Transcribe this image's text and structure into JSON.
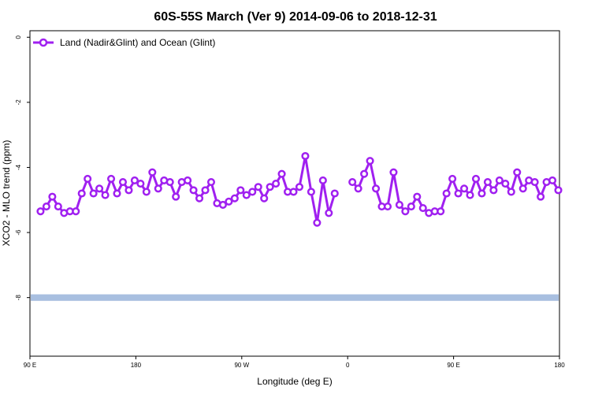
{
  "chart_data": {
    "type": "line",
    "title": "60S-55S March (Ver 9)   2014-09-06 to 2018-12-31",
    "xlabel": "Longitude (deg E)",
    "ylabel": "XCO2 - MLO trend (ppm)",
    "x_ticks": [
      {
        "value": 90,
        "label": "90 E"
      },
      {
        "value": 180,
        "label": "180"
      },
      {
        "value": 270,
        "label": "90 W"
      },
      {
        "value": 360,
        "label": "0"
      },
      {
        "value": 450,
        "label": "90 E"
      },
      {
        "value": 540,
        "label": "180"
      }
    ],
    "y_ticks": [
      {
        "value": 0,
        "label": "0"
      },
      {
        "value": -2,
        "label": "-2"
      },
      {
        "value": -4,
        "label": "-4"
      },
      {
        "value": -6,
        "label": "-6"
      },
      {
        "value": -8,
        "label": "-8"
      }
    ],
    "xlim": [
      90,
      540
    ],
    "ylim": [
      -9.8,
      0.2
    ],
    "grid": false,
    "legend": {
      "position": "top-left"
    },
    "band": {
      "y_min": -8.1,
      "y_max": -7.9,
      "color": "#a8bfe0"
    },
    "series": [
      {
        "name": "Land (Nadir&Glint) and Ocean (Glint)",
        "color": "#a020f0",
        "x": [
          99,
          104,
          109,
          114,
          119,
          124,
          129,
          134,
          139,
          144,
          149,
          154,
          159,
          164,
          169,
          174,
          179,
          184,
          189,
          194,
          199,
          204,
          209,
          214,
          219,
          224,
          229,
          234,
          239,
          244,
          249,
          254,
          259,
          264,
          269,
          274,
          279,
          284,
          289,
          294,
          299,
          304,
          309,
          314,
          319,
          324,
          329,
          334,
          339,
          344,
          349,
          364,
          369,
          374,
          379,
          384,
          389,
          394,
          399,
          404,
          409,
          414,
          419,
          424,
          429,
          434,
          439,
          444,
          449,
          454,
          459,
          464,
          469,
          474,
          479,
          484,
          489,
          494,
          499,
          504,
          509,
          514,
          519,
          524,
          529,
          534,
          539
        ],
        "y": [
          -5.35,
          -5.2,
          -4.9,
          -5.2,
          -5.4,
          -5.35,
          -5.35,
          -4.8,
          -4.35,
          -4.8,
          -4.65,
          -4.85,
          -4.35,
          -4.8,
          -4.45,
          -4.7,
          -4.4,
          -4.5,
          -4.75,
          -4.15,
          -4.65,
          -4.4,
          -4.45,
          -4.9,
          -4.45,
          -4.4,
          -4.7,
          -4.95,
          -4.7,
          -4.45,
          -5.1,
          -5.15,
          -5.05,
          -4.95,
          -4.7,
          -4.85,
          -4.75,
          -4.6,
          -4.95,
          -4.6,
          -4.5,
          -4.2,
          -4.75,
          -4.75,
          -4.6,
          -3.65,
          -4.75,
          -5.7,
          -4.4,
          -5.4,
          -4.8,
          -4.45,
          -4.65,
          -4.2,
          -3.8,
          -4.65,
          -5.2,
          -5.2,
          -4.15,
          -5.15,
          -5.35,
          -5.2,
          -4.9,
          -5.25,
          -5.4,
          -5.35,
          -5.35,
          -4.8,
          -4.35,
          -4.8,
          -4.65,
          -4.85,
          -4.35,
          -4.8,
          -4.45,
          -4.7,
          -4.4,
          -4.5,
          -4.75,
          -4.15,
          -4.65,
          -4.4,
          -4.45,
          -4.9,
          -4.45,
          -4.4,
          -4.7
        ],
        "x_gap_after": [
          349
        ]
      }
    ]
  }
}
